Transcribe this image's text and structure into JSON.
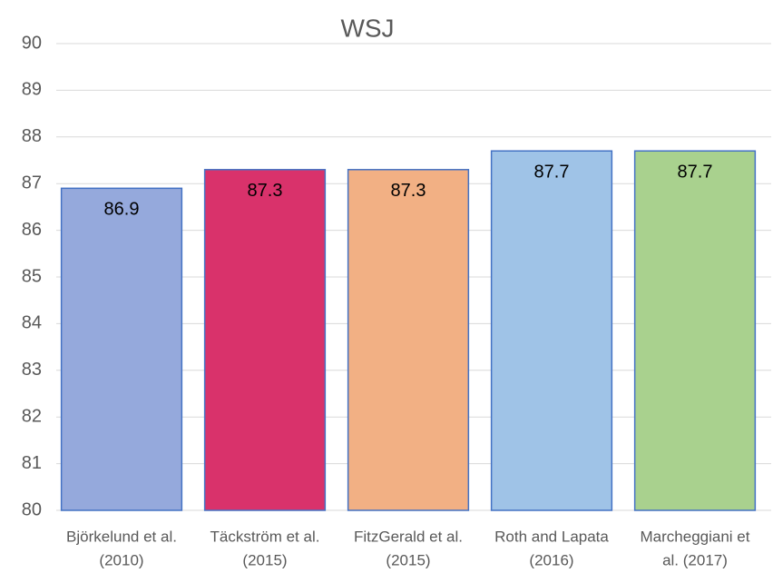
{
  "chart_data": {
    "type": "bar",
    "title": "WSJ",
    "categories": [
      [
        "Björkelund et al.",
        "(2010)"
      ],
      [
        "Täckström et al.",
        "(2015)"
      ],
      [
        "FitzGerald et al.",
        "(2015)"
      ],
      [
        "Roth and Lapata",
        "(2016)"
      ],
      [
        "Marcheggiani et",
        "al. (2017)"
      ]
    ],
    "values": [
      86.9,
      87.3,
      87.3,
      87.7,
      87.7
    ],
    "colors": [
      "#95a9dc",
      "#d9326b",
      "#f2b084",
      "#9fc3e7",
      "#a9d18e"
    ],
    "edge_color": "#4472c4",
    "ylim": [
      80,
      90
    ],
    "yticks": [
      80,
      81,
      82,
      83,
      84,
      85,
      86,
      87,
      88,
      89,
      90
    ],
    "grid": true
  }
}
